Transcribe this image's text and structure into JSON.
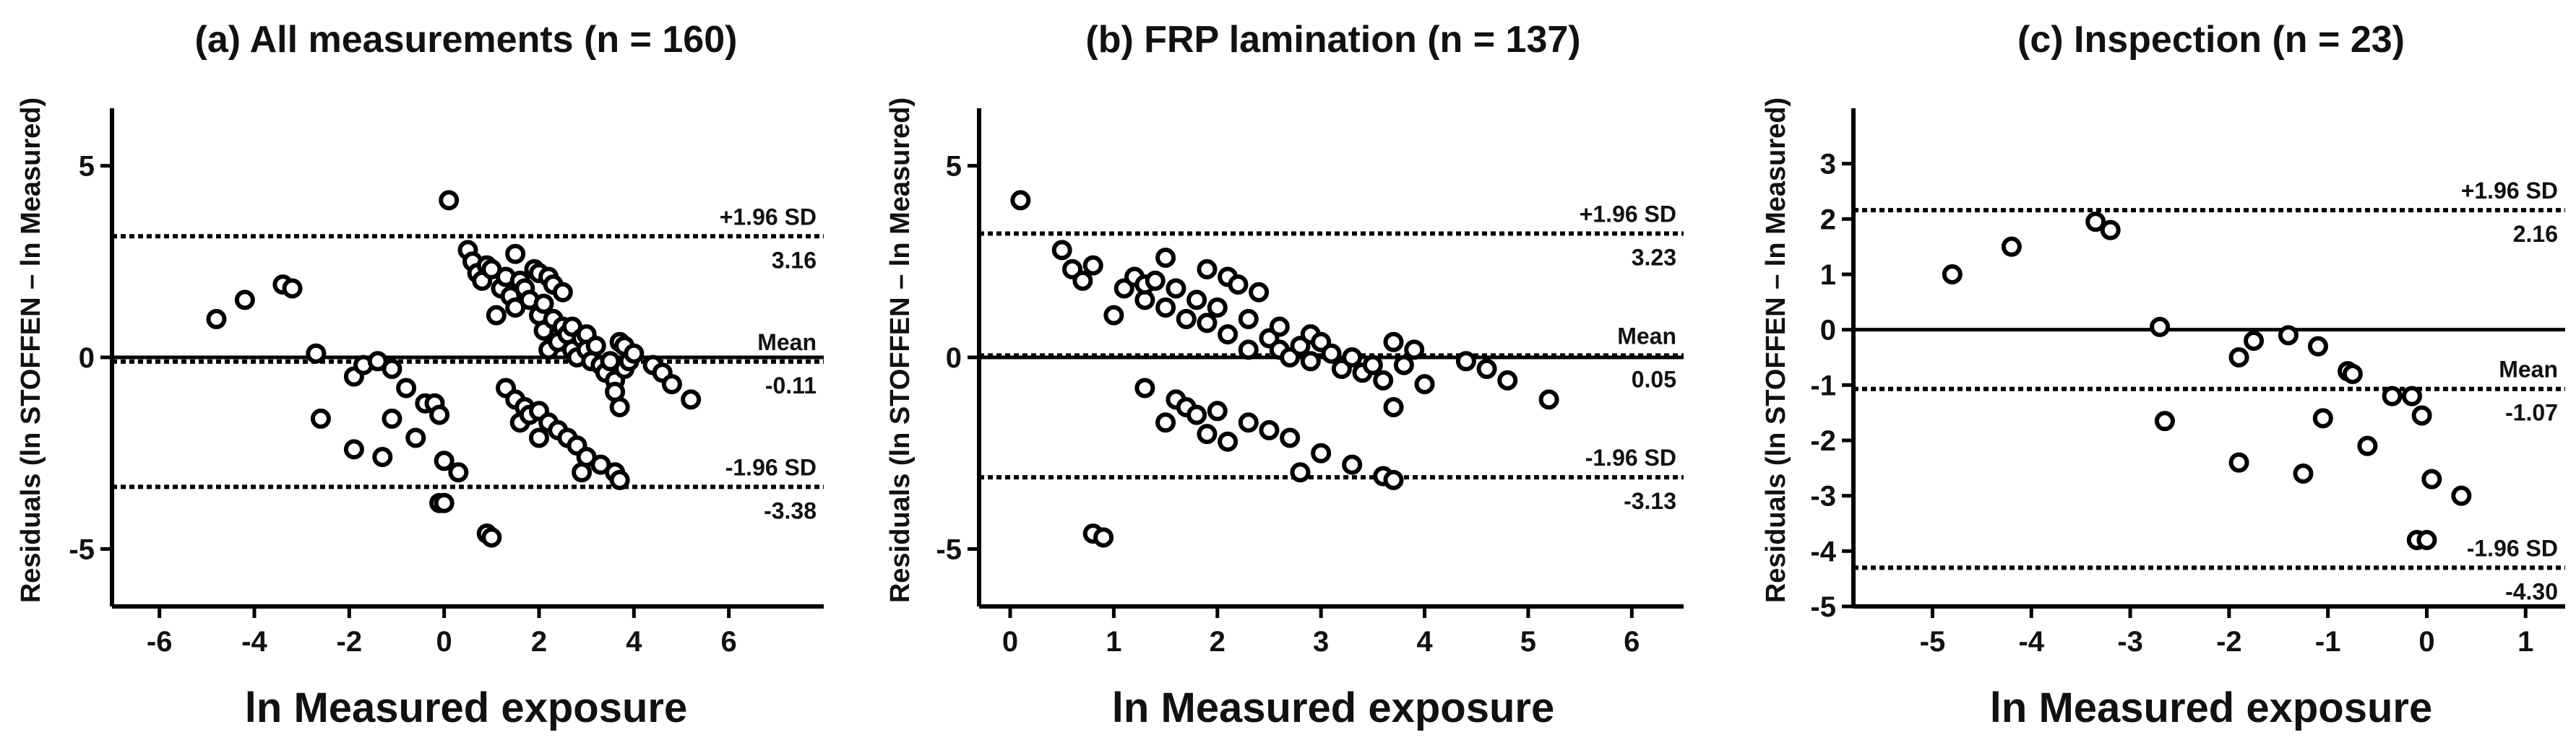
{
  "chart_data": [
    {
      "type": "scatter",
      "title": "(a)  All measurements (n = 160)",
      "xlabel": "ln Measured exposure",
      "ylabel": "Residuals (ln STOFFEN – ln Measured)",
      "xlim": [
        -7,
        8
      ],
      "ylim": [
        -6.5,
        6.5
      ],
      "xticks": [
        -6,
        -4,
        -2,
        0,
        2,
        4,
        6
      ],
      "yticks": [
        -5,
        0,
        5
      ],
      "upper_loa": {
        "label": "+1.96 SD",
        "value": 3.16,
        "value_text": "3.16"
      },
      "mean": {
        "label": "Mean",
        "value": -0.11,
        "value_text": "-0.11"
      },
      "lower_loa": {
        "label": "-1.96 SD",
        "value": -3.38,
        "value_text": "-3.38"
      },
      "points": [
        [
          -4.8,
          1.0
        ],
        [
          -4.2,
          1.5
        ],
        [
          -3.4,
          1.9
        ],
        [
          -3.2,
          1.8
        ],
        [
          -2.7,
          0.1
        ],
        [
          -2.6,
          -1.6
        ],
        [
          -1.9,
          -2.4
        ],
        [
          -1.9,
          -0.5
        ],
        [
          -1.7,
          -0.2
        ],
        [
          -1.4,
          -0.1
        ],
        [
          -1.3,
          -2.6
        ],
        [
          -1.1,
          -0.3
        ],
        [
          -1.1,
          -1.6
        ],
        [
          -0.8,
          -0.8
        ],
        [
          -0.6,
          -2.1
        ],
        [
          -0.4,
          -1.2
        ],
        [
          -0.2,
          -1.2
        ],
        [
          -0.1,
          -1.5
        ],
        [
          0.0,
          -2.7
        ],
        [
          0.3,
          -3.0
        ],
        [
          -0.1,
          -3.8
        ],
        [
          0.0,
          -3.8
        ],
        [
          0.1,
          4.1
        ],
        [
          0.5,
          2.8
        ],
        [
          0.6,
          2.5
        ],
        [
          0.7,
          2.2
        ],
        [
          0.8,
          2.0
        ],
        [
          0.9,
          2.4
        ],
        [
          1.0,
          2.3
        ],
        [
          1.1,
          1.1
        ],
        [
          1.2,
          1.8
        ],
        [
          1.3,
          2.1
        ],
        [
          1.4,
          1.6
        ],
        [
          1.5,
          2.7
        ],
        [
          1.5,
          1.3
        ],
        [
          1.6,
          2.0
        ],
        [
          1.7,
          1.8
        ],
        [
          1.8,
          1.5
        ],
        [
          1.9,
          2.3
        ],
        [
          2.0,
          1.1
        ],
        [
          2.0,
          2.2
        ],
        [
          2.1,
          1.4
        ],
        [
          2.1,
          0.7
        ],
        [
          2.2,
          2.1
        ],
        [
          2.2,
          0.2
        ],
        [
          2.3,
          1.0
        ],
        [
          2.3,
          1.9
        ],
        [
          2.4,
          0.4
        ],
        [
          2.5,
          0.8
        ],
        [
          2.5,
          1.7
        ],
        [
          2.6,
          0.6
        ],
        [
          2.7,
          0.2
        ],
        [
          2.7,
          0.8
        ],
        [
          2.8,
          0.0
        ],
        [
          2.9,
          0.5
        ],
        [
          3.0,
          0.6
        ],
        [
          3.0,
          0.2
        ],
        [
          3.1,
          -0.1
        ],
        [
          3.2,
          0.3
        ],
        [
          3.3,
          -0.2
        ],
        [
          3.4,
          -0.4
        ],
        [
          3.5,
          -0.1
        ],
        [
          3.6,
          -0.6
        ],
        [
          3.6,
          -0.9
        ],
        [
          3.7,
          0.4
        ],
        [
          3.7,
          -1.3
        ],
        [
          3.8,
          0.3
        ],
        [
          3.8,
          -0.3
        ],
        [
          3.9,
          -0.1
        ],
        [
          4.0,
          0.1
        ],
        [
          4.4,
          -0.2
        ],
        [
          4.6,
          -0.4
        ],
        [
          4.8,
          -0.7
        ],
        [
          5.2,
          -1.1
        ],
        [
          1.3,
          -0.8
        ],
        [
          1.5,
          -1.1
        ],
        [
          1.6,
          -1.7
        ],
        [
          1.7,
          -1.3
        ],
        [
          1.8,
          -1.5
        ],
        [
          2.0,
          -2.1
        ],
        [
          2.0,
          -1.4
        ],
        [
          2.2,
          -1.7
        ],
        [
          2.4,
          -1.9
        ],
        [
          2.6,
          -2.1
        ],
        [
          2.8,
          -2.3
        ],
        [
          2.9,
          -3.0
        ],
        [
          3.0,
          -2.6
        ],
        [
          3.3,
          -2.8
        ],
        [
          3.6,
          -3.0
        ],
        [
          3.7,
          -3.2
        ],
        [
          0.9,
          -4.6
        ],
        [
          1.0,
          -4.7
        ]
      ]
    },
    {
      "type": "scatter",
      "title": "(b)  FRP lamination (n = 137)",
      "xlabel": "ln Measured exposure",
      "ylabel": "Residuals (ln STOFFEN – ln Measured)",
      "xlim": [
        -0.3,
        6.5
      ],
      "ylim": [
        -6.5,
        6.5
      ],
      "xticks": [
        0,
        1,
        2,
        3,
        4,
        5,
        6
      ],
      "yticks": [
        -5,
        0,
        5
      ],
      "upper_loa": {
        "label": "+1.96 SD",
        "value": 3.23,
        "value_text": "3.23"
      },
      "mean": {
        "label": "Mean",
        "value": 0.05,
        "value_text": "0.05"
      },
      "lower_loa": {
        "label": "-1.96 SD",
        "value": -3.13,
        "value_text": "-3.13"
      },
      "points": [
        [
          0.1,
          4.1
        ],
        [
          0.5,
          2.8
        ],
        [
          0.6,
          2.3
        ],
        [
          0.7,
          2.0
        ],
        [
          0.8,
          2.4
        ],
        [
          1.0,
          1.1
        ],
        [
          1.1,
          1.8
        ],
        [
          1.2,
          2.1
        ],
        [
          1.3,
          1.5
        ],
        [
          1.3,
          1.9
        ],
        [
          1.4,
          2.0
        ],
        [
          1.5,
          2.6
        ],
        [
          1.5,
          1.3
        ],
        [
          1.6,
          1.8
        ],
        [
          1.7,
          1.0
        ],
        [
          1.8,
          1.5
        ],
        [
          1.9,
          2.3
        ],
        [
          1.9,
          0.9
        ],
        [
          2.0,
          1.3
        ],
        [
          2.1,
          2.1
        ],
        [
          2.1,
          0.6
        ],
        [
          2.2,
          1.9
        ],
        [
          2.3,
          0.2
        ],
        [
          2.3,
          1.0
        ],
        [
          2.4,
          1.7
        ],
        [
          2.5,
          0.5
        ],
        [
          2.6,
          0.8
        ],
        [
          2.6,
          0.2
        ],
        [
          2.7,
          0.0
        ],
        [
          2.8,
          0.3
        ],
        [
          2.9,
          0.6
        ],
        [
          2.9,
          -0.1
        ],
        [
          3.0,
          0.4
        ],
        [
          3.1,
          0.1
        ],
        [
          3.2,
          -0.3
        ],
        [
          3.3,
          0.0
        ],
        [
          3.4,
          -0.4
        ],
        [
          3.5,
          -0.2
        ],
        [
          3.6,
          -0.6
        ],
        [
          3.7,
          0.4
        ],
        [
          3.7,
          -1.3
        ],
        [
          3.8,
          -0.2
        ],
        [
          3.9,
          0.2
        ],
        [
          4.0,
          -0.7
        ],
        [
          4.4,
          -0.1
        ],
        [
          4.6,
          -0.3
        ],
        [
          4.8,
          -0.6
        ],
        [
          5.2,
          -1.1
        ],
        [
          1.3,
          -0.8
        ],
        [
          1.5,
          -1.7
        ],
        [
          1.6,
          -1.1
        ],
        [
          1.7,
          -1.3
        ],
        [
          1.8,
          -1.5
        ],
        [
          1.9,
          -2.0
        ],
        [
          2.0,
          -1.4
        ],
        [
          2.1,
          -2.2
        ],
        [
          2.3,
          -1.7
        ],
        [
          2.5,
          -1.9
        ],
        [
          2.7,
          -2.1
        ],
        [
          2.8,
          -3.0
        ],
        [
          3.0,
          -2.5
        ],
        [
          3.3,
          -2.8
        ],
        [
          3.6,
          -3.1
        ],
        [
          3.7,
          -3.2
        ],
        [
          0.8,
          -4.6
        ],
        [
          0.9,
          -4.7
        ]
      ]
    },
    {
      "type": "scatter",
      "title": "(c)  Inspection (n = 23)",
      "xlabel": "ln Measured exposure",
      "ylabel": "Residuals (ln STOFFEN – ln Measured)",
      "xlim": [
        -5.8,
        1.4
      ],
      "ylim": [
        -5,
        4
      ],
      "xticks": [
        -5,
        -4,
        -3,
        -2,
        -1,
        0,
        1
      ],
      "yticks": [
        -5,
        -4,
        -3,
        -2,
        -1,
        0,
        1,
        2,
        3
      ],
      "upper_loa": {
        "label": "+1.96 SD",
        "value": 2.16,
        "value_text": "2.16"
      },
      "mean": {
        "label": "Mean",
        "value": -1.07,
        "value_text": "-1.07"
      },
      "lower_loa": {
        "label": "-1.96 SD",
        "value": -4.3,
        "value_text": "-4.30"
      },
      "points": [
        [
          -4.8,
          1.0
        ],
        [
          -4.2,
          1.5
        ],
        [
          -3.35,
          1.95
        ],
        [
          -3.2,
          1.8
        ],
        [
          -2.7,
          0.05
        ],
        [
          -2.65,
          -1.65
        ],
        [
          -1.9,
          -2.4
        ],
        [
          -1.9,
          -0.5
        ],
        [
          -1.75,
          -0.2
        ],
        [
          -1.4,
          -0.1
        ],
        [
          -1.25,
          -2.6
        ],
        [
          -1.1,
          -0.3
        ],
        [
          -1.05,
          -1.6
        ],
        [
          -0.8,
          -0.75
        ],
        [
          -0.75,
          -0.8
        ],
        [
          -0.6,
          -2.1
        ],
        [
          -0.35,
          -1.2
        ],
        [
          -0.15,
          -1.2
        ],
        [
          -0.05,
          -1.55
        ],
        [
          0.05,
          -2.7
        ],
        [
          0.35,
          -3.0
        ],
        [
          -0.1,
          -3.8
        ],
        [
          0.0,
          -3.8
        ]
      ]
    }
  ]
}
